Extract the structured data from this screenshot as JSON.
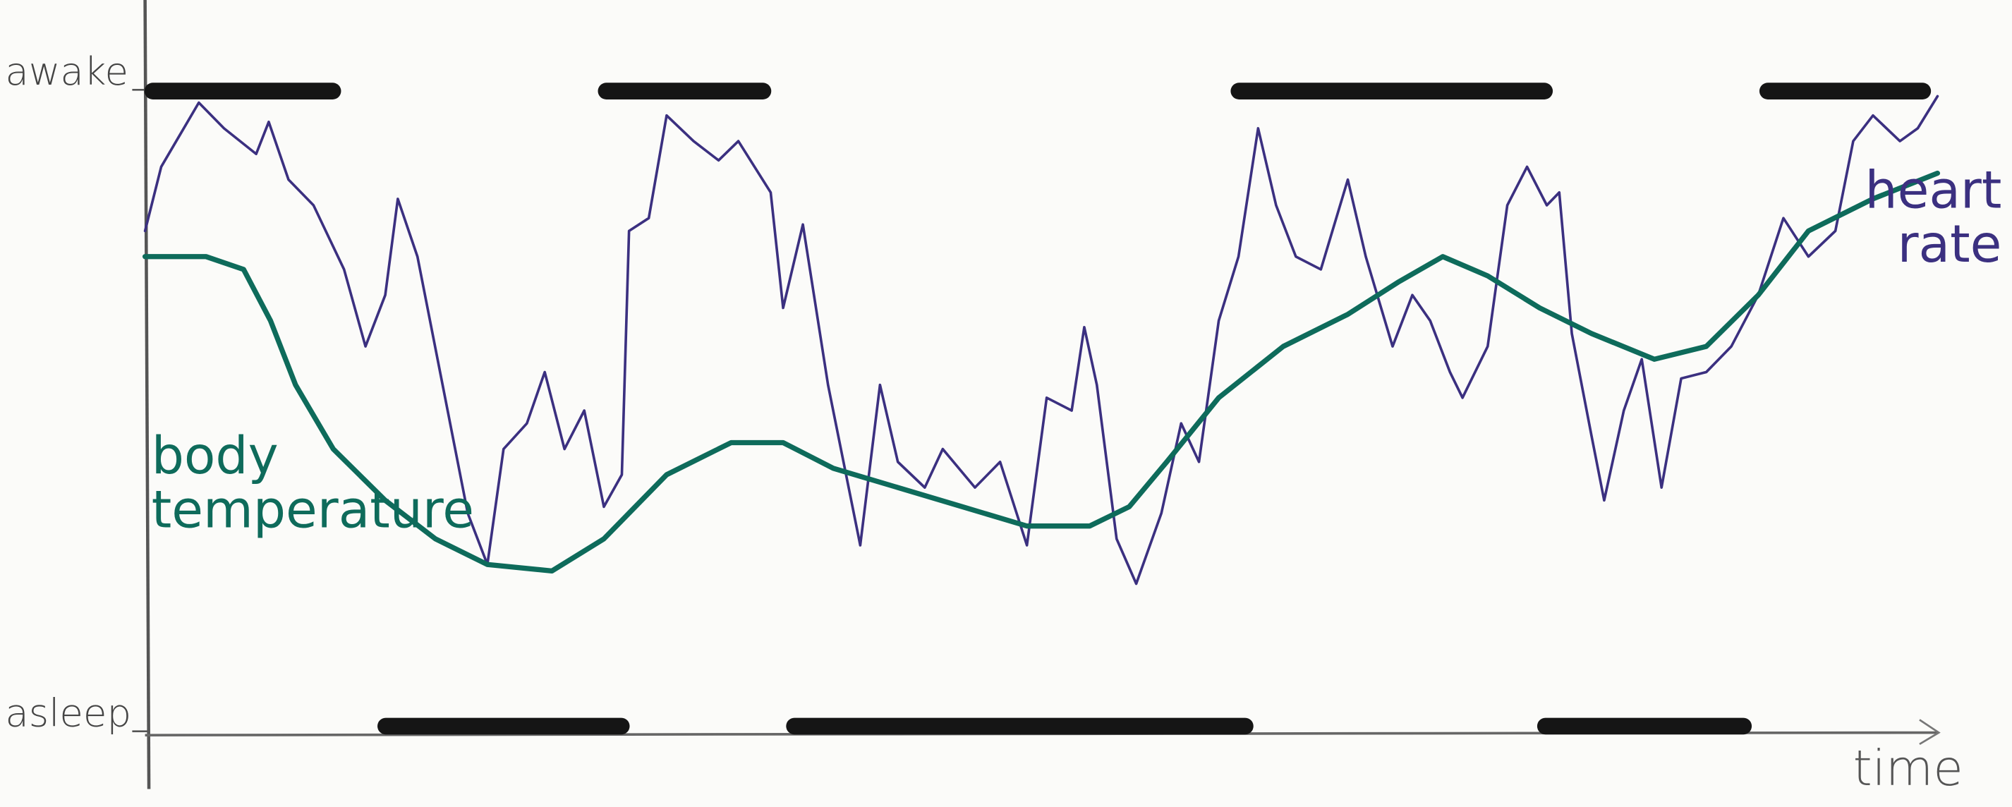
{
  "chart_data": {
    "type": "line",
    "x_label": "time",
    "xlim": [
      0,
      100
    ],
    "ylim": [
      0,
      100
    ],
    "yticks": [
      {
        "value": 100,
        "label": "awake"
      },
      {
        "value": 0,
        "label": "asleep"
      }
    ],
    "awake_color": "#151515",
    "awake_periods": [
      [
        0,
        10.9
      ],
      [
        25.3,
        34.9
      ],
      [
        60.6,
        78.5
      ],
      [
        90.1,
        99.6
      ]
    ],
    "asleep_periods": [
      [
        13.0,
        27.0
      ],
      [
        35.8,
        61.8
      ],
      [
        77.7,
        89.6
      ]
    ],
    "series": [
      {
        "name": "heart rate",
        "color": "#3b3080",
        "x": [
          0,
          0.9,
          3.0,
          4.4,
          6.2,
          6.9,
          8.0,
          9.4,
          11.1,
          12.3,
          13.4,
          14.1,
          15.2,
          16.6,
          18.0,
          19.1,
          20.0,
          21.3,
          22.3,
          23.4,
          24.5,
          25.6,
          26.6,
          27.0,
          28.1,
          29.1,
          30.6,
          32.0,
          33.1,
          34.9,
          35.6,
          36.7,
          38.1,
          39.9,
          41.0,
          42.0,
          43.5,
          44.5,
          46.3,
          47.7,
          49.2,
          50.3,
          51.7,
          52.4,
          53.1,
          54.2,
          55.3,
          56.7,
          57.8,
          58.8,
          59.9,
          61.0,
          62.1,
          63.1,
          64.2,
          65.6,
          67.1,
          68.1,
          69.6,
          70.7,
          71.7,
          72.8,
          73.5,
          74.9,
          76.0,
          77.1,
          78.2,
          78.9,
          79.6,
          80.7,
          81.4,
          82.5,
          83.5,
          84.6,
          85.7,
          87.1,
          88.5,
          90.0,
          91.4,
          92.8,
          94.3,
          95.3,
          96.4,
          97.9,
          98.9,
          100
        ],
        "values": [
          78,
          88,
          98,
          94,
          90,
          95,
          86,
          82,
          72,
          60,
          68,
          83,
          74,
          54,
          34,
          26,
          44,
          48,
          56,
          44,
          50,
          35,
          40,
          78,
          80,
          96,
          92,
          89,
          92,
          84,
          66,
          79,
          54,
          29,
          54,
          42,
          38,
          44,
          38,
          42,
          29,
          52,
          50,
          63,
          54,
          30,
          23,
          34,
          48,
          42,
          64,
          74,
          94,
          82,
          74,
          72,
          86,
          74,
          60,
          68,
          64,
          56,
          52,
          60,
          82,
          88,
          82,
          84,
          62,
          46,
          36,
          50,
          58,
          38,
          55,
          56,
          60,
          68,
          80,
          74,
          78,
          92,
          96,
          92,
          94,
          99
        ]
      },
      {
        "name": "body temperature",
        "color": "#0e6b5b",
        "x": [
          0,
          3.4,
          5.5,
          7.0,
          8.4,
          10.5,
          13.4,
          16.2,
          19.1,
          22.7,
          25.6,
          29.1,
          32.7,
          35.6,
          38.4,
          42.0,
          45.6,
          49.2,
          52.7,
          54.9,
          57.0,
          59.9,
          63.5,
          67.1,
          69.9,
          72.4,
          74.9,
          77.8,
          80.7,
          84.2,
          87.1,
          90.0,
          92.8,
          96.4,
          100
        ],
        "values": [
          74,
          74,
          72,
          64,
          54,
          44,
          36,
          30,
          26,
          25,
          30,
          40,
          45,
          45,
          41,
          38,
          35,
          32,
          32,
          35,
          42,
          52,
          60,
          65,
          70,
          74,
          71,
          66,
          62,
          58,
          60,
          68,
          78,
          83,
          87
        ]
      }
    ]
  }
}
